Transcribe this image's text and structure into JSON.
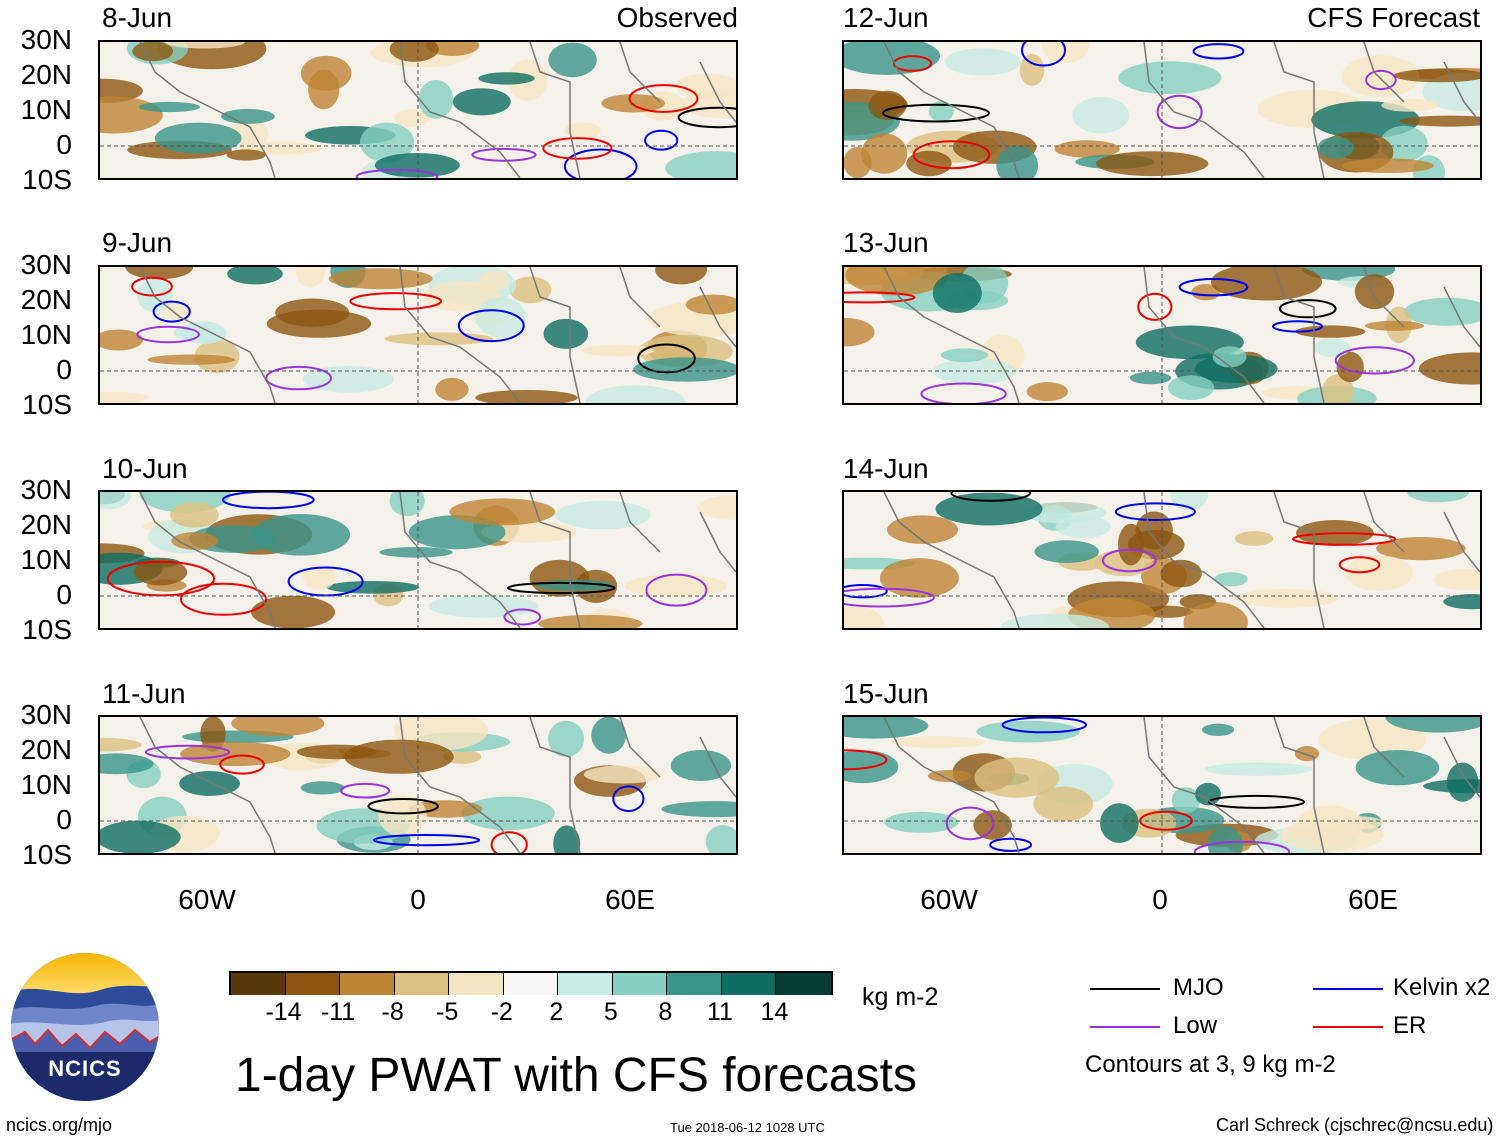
{
  "observed_label": "Observed",
  "forecast_label": "CFS Forecast",
  "panels": [
    {
      "date": "8-Jun",
      "column": "left"
    },
    {
      "date": "9-Jun",
      "column": "left"
    },
    {
      "date": "10-Jun",
      "column": "left"
    },
    {
      "date": "11-Jun",
      "column": "left"
    },
    {
      "date": "12-Jun",
      "column": "right"
    },
    {
      "date": "13-Jun",
      "column": "right"
    },
    {
      "date": "14-Jun",
      "column": "right"
    },
    {
      "date": "15-Jun",
      "column": "right"
    }
  ],
  "lat_ticks": [
    "30N",
    "20N",
    "10N",
    "0",
    "10S"
  ],
  "lon_ticks": [
    "60W",
    "0",
    "60E"
  ],
  "colorbar": {
    "colors": [
      "#5a3a0c",
      "#8c5610",
      "#be8534",
      "#dcc07f",
      "#f5e6c3",
      "#f7f7f7",
      "#c8ebe3",
      "#86cfc1",
      "#3a958a",
      "#0f6e62",
      "#063c33"
    ],
    "ticks": [
      "-14",
      "-11",
      "-8",
      "-5",
      "-2",
      "2",
      "5",
      "8",
      "11",
      "14"
    ],
    "units": "kg m-2"
  },
  "legend": {
    "items": [
      {
        "label": "MJO",
        "color": "#000000"
      },
      {
        "label": "Kelvin x2",
        "color": "#0000ee"
      },
      {
        "label": "Low",
        "color": "#9933dd"
      },
      {
        "label": "ER",
        "color": "#ee0000"
      }
    ],
    "note": "Contours at 3, 9 kg m-2"
  },
  "logo_text": "NCICS",
  "main_title": "1-day PWAT with CFS forecasts",
  "footer": {
    "left": "ncics.org/mjo",
    "center": "Tue 2018-06-12 1028 UTC",
    "right": "Carl Schreck (cjschrec@ncsu.edu)"
  }
}
